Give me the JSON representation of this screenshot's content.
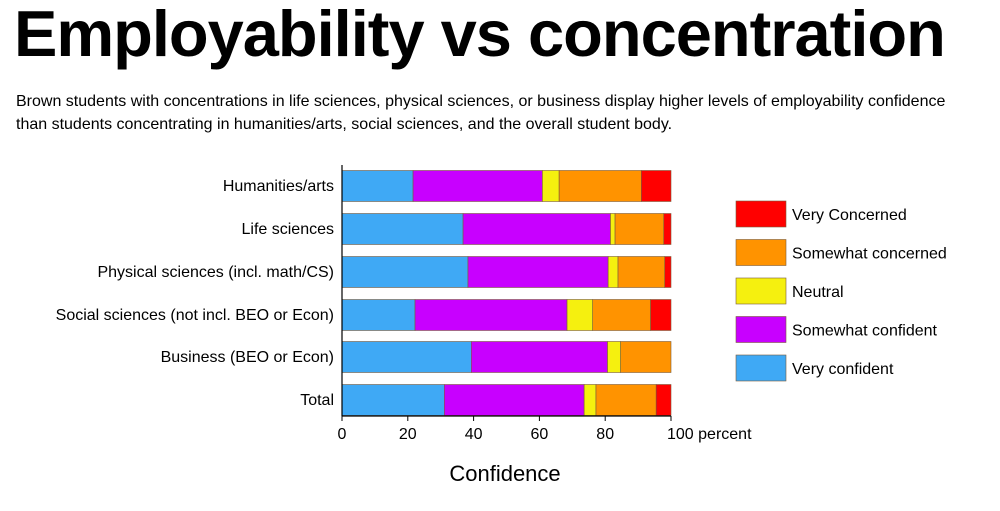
{
  "title": "Employability vs concentration",
  "subtitle": "Brown students with concentrations in life sciences, physical sciences, or business display higher levels of employability confidence than students concentrating in humanities/arts, social sciences, and the overall student body.",
  "chart_data": {
    "type": "bar",
    "orientation": "horizontal",
    "stacked": true,
    "categories": [
      "Humanities/arts",
      "Life sciences",
      "Physical sciences (incl. math/CS)",
      "Social sciences (not incl. BEO or Econ)",
      "Business (BEO or Econ)",
      "Total"
    ],
    "series": [
      {
        "name": "Very confident",
        "color": "#3fa9f5",
        "values": [
          21.6,
          36.8,
          38.3,
          22.2,
          39.3,
          31.1
        ]
      },
      {
        "name": "Somewhat confident",
        "color": "#c800ff",
        "values": [
          39.3,
          44.8,
          42.6,
          46.2,
          41.4,
          42.5
        ]
      },
      {
        "name": "Neutral",
        "color": "#f5f00f",
        "values": [
          5.1,
          1.4,
          3.0,
          7.8,
          4.0,
          3.6
        ]
      },
      {
        "name": "Somewhat concerned",
        "color": "#ff9300",
        "values": [
          25.0,
          14.8,
          14.2,
          17.6,
          15.3,
          18.3
        ]
      },
      {
        "name": "Very Concerned",
        "color": "#ff0000",
        "values": [
          9.0,
          2.2,
          1.9,
          6.2,
          0.0,
          4.5
        ]
      }
    ],
    "legend_order": [
      "Very Concerned",
      "Somewhat concerned",
      "Neutral",
      "Somewhat confident",
      "Very confident"
    ],
    "xticks": [
      "0",
      "20",
      "40",
      "60",
      "80",
      "100 percent"
    ],
    "xlim": [
      0,
      100
    ],
    "xlabel": "Confidence",
    "grid": false,
    "legend_position": "right"
  }
}
